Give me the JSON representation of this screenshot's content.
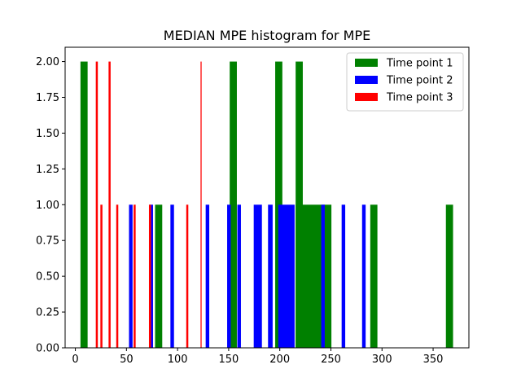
{
  "chart_data": {
    "type": "bar",
    "title": "MEDIAN MPE histogram for MPE",
    "xlabel": "",
    "ylabel": "",
    "xlim": [
      -10,
      385
    ],
    "ylim": [
      0,
      2.0
    ],
    "xticks": [
      0,
      50,
      100,
      150,
      200,
      250,
      300,
      350
    ],
    "xtick_labels": [
      "0",
      "50",
      "100",
      "150",
      "200",
      "250",
      "300",
      "350"
    ],
    "yticks": [
      0,
      0.25,
      0.5,
      0.75,
      1.0,
      1.25,
      1.5,
      1.75,
      2.0
    ],
    "ytick_labels": [
      "0.00",
      "0.25",
      "0.50",
      "0.75",
      "1.00",
      "1.25",
      "1.50",
      "1.75",
      "2.00"
    ],
    "legend_position": "top-right",
    "series": [
      {
        "name": "Time point 1",
        "color": "#008000",
        "bars": [
          {
            "x0": 5.0,
            "x1": 12.0,
            "y": 2
          },
          {
            "x0": 78.0,
            "x1": 85.0,
            "y": 1
          },
          {
            "x0": 151.0,
            "x1": 158.0,
            "y": 2
          },
          {
            "x0": 195.5,
            "x1": 202.5,
            "y": 2
          },
          {
            "x0": 215.5,
            "x1": 222.5,
            "y": 2
          },
          {
            "x0": 215.5,
            "x1": 250.5,
            "y": 1
          },
          {
            "x0": 288.5,
            "x1": 295.5,
            "y": 1
          },
          {
            "x0": 362.5,
            "x1": 369.5,
            "y": 1
          }
        ]
      },
      {
        "name": "Time point 2",
        "color": "#0000ff",
        "bars": [
          {
            "x0": 52.5,
            "x1": 56.0,
            "y": 1
          },
          {
            "x0": 72.5,
            "x1": 76.0,
            "y": 1
          },
          {
            "x0": 93.0,
            "x1": 96.5,
            "y": 1
          },
          {
            "x0": 127.5,
            "x1": 131.0,
            "y": 1
          },
          {
            "x0": 148.5,
            "x1": 152.0,
            "y": 1
          },
          {
            "x0": 158.5,
            "x1": 162.0,
            "y": 1
          },
          {
            "x0": 174.5,
            "x1": 182.5,
            "y": 1
          },
          {
            "x0": 188.5,
            "x1": 193.0,
            "y": 1
          },
          {
            "x0": 198.5,
            "x1": 214.5,
            "y": 1
          },
          {
            "x0": 240.5,
            "x1": 244.0,
            "y": 1
          },
          {
            "x0": 260.5,
            "x1": 264.0,
            "y": 1
          },
          {
            "x0": 280.5,
            "x1": 284.0,
            "y": 1
          }
        ]
      },
      {
        "name": "Time point 3",
        "color": "#ff0000",
        "bars": [
          {
            "x0": 20.0,
            "x1": 22.0,
            "y": 2
          },
          {
            "x0": 24.5,
            "x1": 26.5,
            "y": 1
          },
          {
            "x0": 32.5,
            "x1": 34.5,
            "y": 2
          },
          {
            "x0": 40.0,
            "x1": 42.0,
            "y": 1
          },
          {
            "x0": 57.0,
            "x1": 59.0,
            "y": 1
          },
          {
            "x0": 72.0,
            "x1": 74.0,
            "y": 1
          },
          {
            "x0": 108.5,
            "x1": 110.5,
            "y": 1
          },
          {
            "x0": 122.5,
            "x1": 123.5,
            "y": 2
          }
        ]
      }
    ]
  }
}
